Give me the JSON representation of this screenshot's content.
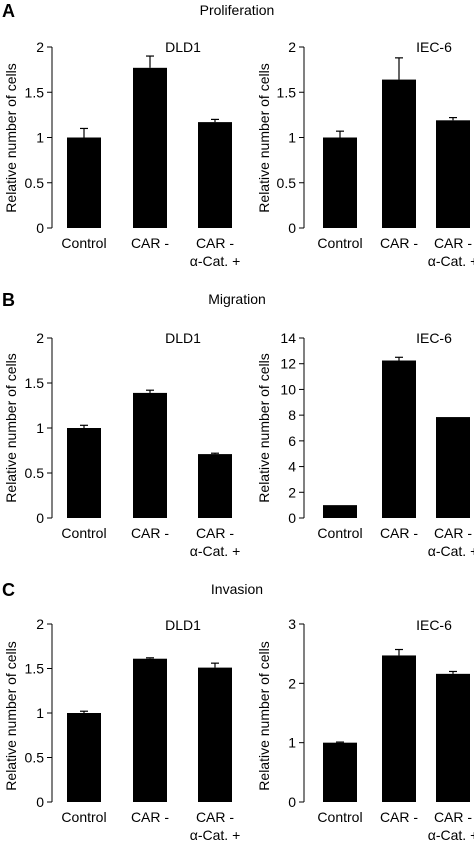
{
  "panels": [
    {
      "letter": "A",
      "title": "Proliferation",
      "charts": [
        {
          "subtitle": "DLD1",
          "ylabel": "Relative number of cells"
        },
        {
          "subtitle": "IEC-6",
          "ylabel": "Relative number of cells"
        }
      ]
    },
    {
      "letter": "B",
      "title": "Migration",
      "charts": [
        {
          "subtitle": "DLD1",
          "ylabel": "Relative number of cells"
        },
        {
          "subtitle": "IEC-6",
          "ylabel": "Relative number of cells"
        }
      ]
    },
    {
      "letter": "C",
      "title": "Invasion",
      "charts": [
        {
          "subtitle": "DLD1",
          "ylabel": "Relative number of cells"
        },
        {
          "subtitle": "IEC-6",
          "ylabel": "Relative number of cells"
        }
      ]
    }
  ],
  "chart_data": [
    {
      "type": "bar",
      "title": "DLD1",
      "ylabel": "Relative number of cells",
      "categories": [
        [
          "Control"
        ],
        [
          "CAR -"
        ],
        [
          "CAR -",
          "α-Cat. +"
        ]
      ],
      "values": [
        1.0,
        1.77,
        1.17
      ],
      "errors": [
        0.1,
        0.13,
        0.03
      ],
      "ylim": [
        0,
        2
      ],
      "yticks": [
        0,
        0.5,
        1,
        1.5,
        2
      ],
      "ytick_labels": [
        "0",
        "0.5",
        "1",
        "1.5",
        "2"
      ],
      "bar_color": "#000000"
    },
    {
      "type": "bar",
      "title": "IEC-6",
      "ylabel": "Relative number of cells",
      "categories": [
        [
          "Control"
        ],
        [
          "CAR -"
        ],
        [
          "CAR -",
          "α-Cat. +"
        ]
      ],
      "values": [
        1.0,
        1.64,
        1.19
      ],
      "errors": [
        0.07,
        0.24,
        0.03
      ],
      "ylim": [
        0,
        2
      ],
      "yticks": [
        0,
        0.5,
        1,
        1.5,
        2
      ],
      "ytick_labels": [
        "0",
        "0.5",
        "1",
        "1.5",
        "2"
      ],
      "bar_color": "#000000"
    },
    {
      "type": "bar",
      "title": "DLD1",
      "ylabel": "Relative number of cells",
      "categories": [
        [
          "Control"
        ],
        [
          "CAR -"
        ],
        [
          "CAR -",
          "α-Cat. +"
        ]
      ],
      "values": [
        1.0,
        1.39,
        0.71
      ],
      "errors": [
        0.03,
        0.03,
        0.01
      ],
      "ylim": [
        0,
        2
      ],
      "yticks": [
        0,
        0.5,
        1,
        1.5,
        2
      ],
      "ytick_labels": [
        "0",
        "0.5",
        "1",
        "1.5",
        "2"
      ],
      "bar_color": "#000000"
    },
    {
      "type": "bar",
      "title": "IEC-6",
      "ylabel": "Relative number of cells",
      "categories": [
        [
          "Control"
        ],
        [
          "CAR -"
        ],
        [
          "CAR -",
          "α-Cat. +"
        ]
      ],
      "values": [
        1.0,
        12.25,
        7.85
      ],
      "errors": [
        0,
        0.25,
        0
      ],
      "ylim": [
        0,
        14
      ],
      "yticks": [
        0,
        2,
        4,
        6,
        8,
        10,
        12,
        14
      ],
      "ytick_labels": [
        "0",
        "2",
        "4",
        "6",
        "8",
        "10",
        "12",
        "14"
      ],
      "bar_color": "#000000"
    },
    {
      "type": "bar",
      "title": "DLD1",
      "ylabel": "Relative number of cells",
      "categories": [
        [
          "Control"
        ],
        [
          "CAR -"
        ],
        [
          "CAR -",
          "α-Cat. +"
        ]
      ],
      "values": [
        1.0,
        1.61,
        1.51
      ],
      "errors": [
        0.02,
        0.01,
        0.05
      ],
      "ylim": [
        0,
        2
      ],
      "yticks": [
        0,
        0.5,
        1,
        1.5,
        2
      ],
      "ytick_labels": [
        "0",
        "0.5",
        "1",
        "1.5",
        "2"
      ],
      "bar_color": "#000000"
    },
    {
      "type": "bar",
      "title": "IEC-6",
      "ylabel": "Relative number of cells",
      "categories": [
        [
          "Control"
        ],
        [
          "CAR -"
        ],
        [
          "CAR -",
          "α-Cat. +"
        ]
      ],
      "values": [
        1.0,
        2.47,
        2.16
      ],
      "errors": [
        0.01,
        0.1,
        0.04
      ],
      "ylim": [
        0,
        3
      ],
      "yticks": [
        0,
        1,
        2,
        3
      ],
      "ytick_labels": [
        "0",
        "1",
        "2",
        "3"
      ],
      "bar_color": "#000000"
    }
  ]
}
